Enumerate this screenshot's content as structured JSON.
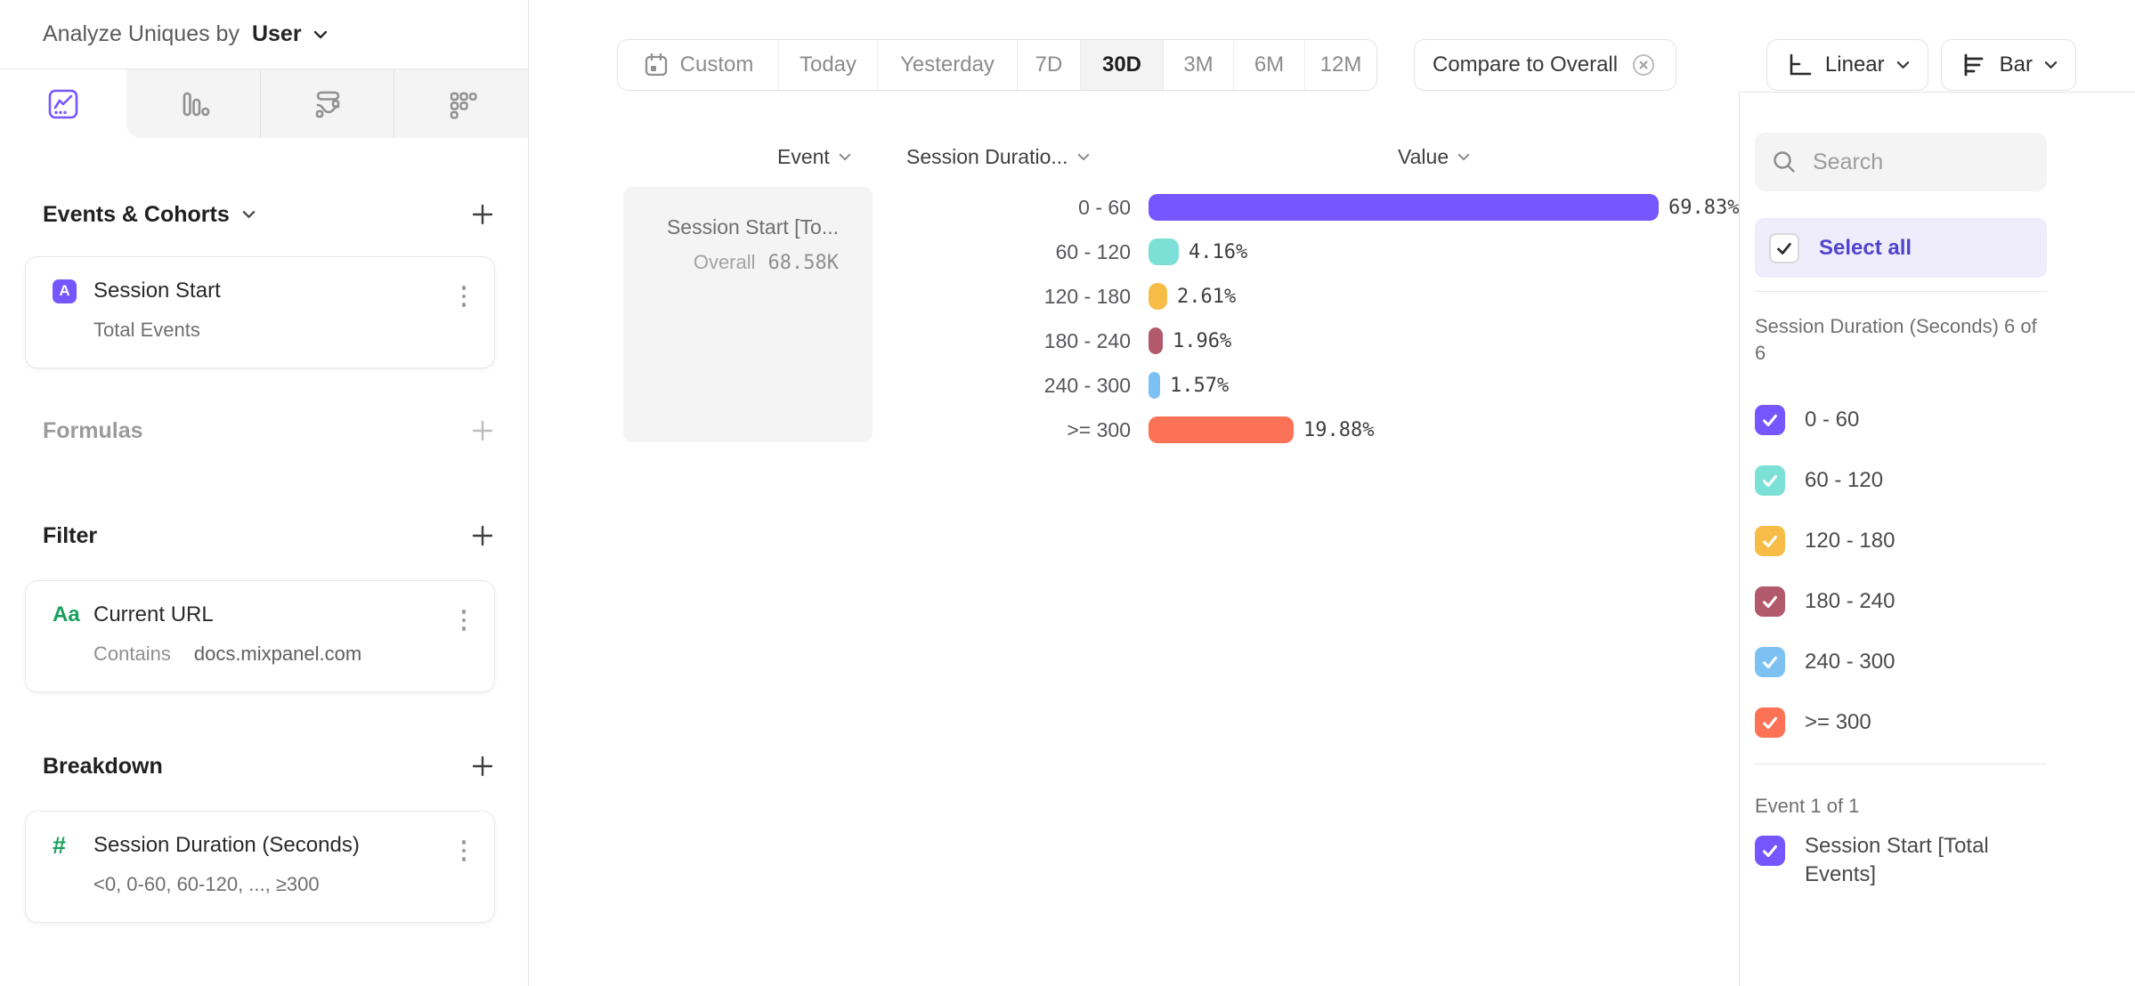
{
  "header": {
    "analyze_prefix": "Analyze Uniques by",
    "analyze_selector": "User"
  },
  "view_tabs": [
    {
      "icon": "line-chart",
      "active": true
    },
    {
      "icon": "bar-chart",
      "active": false
    },
    {
      "icon": "flows",
      "active": false
    },
    {
      "icon": "retention",
      "active": false
    }
  ],
  "sidebar": {
    "events_section": {
      "title": "Events & Cohorts",
      "card": {
        "badge": "A",
        "title": "Session Start",
        "subtitle": "Total Events"
      }
    },
    "formulas_section": {
      "title": "Formulas"
    },
    "filter_section": {
      "title": "Filter",
      "card": {
        "icon_label": "Aa",
        "title": "Current URL",
        "operator": "Contains",
        "value": "docs.mixpanel.com"
      }
    },
    "breakdown_section": {
      "title": "Breakdown",
      "card": {
        "icon_label": "#",
        "title": "Session Duration (Seconds)",
        "subtitle": "<0, 0-60, 60-120, ..., ≥300"
      }
    }
  },
  "toolbar": {
    "date_ranges": [
      "Custom",
      "Today",
      "Yesterday",
      "7D",
      "30D",
      "3M",
      "6M",
      "12M"
    ],
    "active_range": "30D",
    "compare_label": "Compare to Overall",
    "scale_label": "Linear",
    "chart_type_label": "Bar"
  },
  "chart": {
    "column_headers": {
      "event": "Event",
      "breakdown": "Session Duratio...",
      "value": "Value"
    },
    "event_card": {
      "title": "Session Start [To...",
      "overall_label": "Overall",
      "overall_value": "68.58K"
    }
  },
  "chart_data": {
    "type": "bar",
    "orientation": "horizontal",
    "unit": "percent of uniques",
    "series": "Session Start [Total Events]",
    "categories": [
      "0 - 60",
      "60 - 120",
      "120 - 180",
      "180 - 240",
      "240 - 300",
      ">= 300"
    ],
    "values": [
      69.83,
      4.16,
      2.61,
      1.96,
      1.57,
      19.88
    ],
    "value_labels": [
      "69.83%",
      "4.16%",
      "2.61%",
      "1.96%",
      "1.57%",
      "19.88%"
    ],
    "overall_label": "Overall",
    "overall_value": "68.58K",
    "colors": [
      "#7656FF",
      "#7DE0D6",
      "#F6BC45",
      "#B2596B",
      "#7CC1F2",
      "#FC7257"
    ],
    "xlim": [
      0,
      73
    ],
    "grid": false,
    "legend_position": "right"
  },
  "legend": {
    "search_placeholder": "Search",
    "select_all_label": "Select all",
    "breakdown_group_label": "Session Duration (Seconds) 6 of 6",
    "items": [
      {
        "label": "0 - 60",
        "checked": true
      },
      {
        "label": "60 - 120",
        "checked": true
      },
      {
        "label": "120 - 180",
        "checked": true
      },
      {
        "label": "180 - 240",
        "checked": true
      },
      {
        "label": "240 - 300",
        "checked": true
      },
      {
        "label": ">= 300",
        "checked": true
      }
    ],
    "event_group_label": "Event 1 of 1",
    "event_items": [
      {
        "label": "Session Start [Total Events]",
        "checked": true
      }
    ]
  },
  "icons": {
    "view_tabs": [
      "line-chart-icon",
      "bar-chart-icon",
      "flows-icon",
      "retention-icon"
    ],
    "toolbar": [
      "calendar-icon",
      "dismiss-circle-icon",
      "linear-axis-icon",
      "bar-axis-icon",
      "chevron-down-icon"
    ],
    "search": "search-icon",
    "card_menu": "kebab-menu-icon",
    "section_add": "plus-icon",
    "checkbox": "checkmark-icon"
  }
}
